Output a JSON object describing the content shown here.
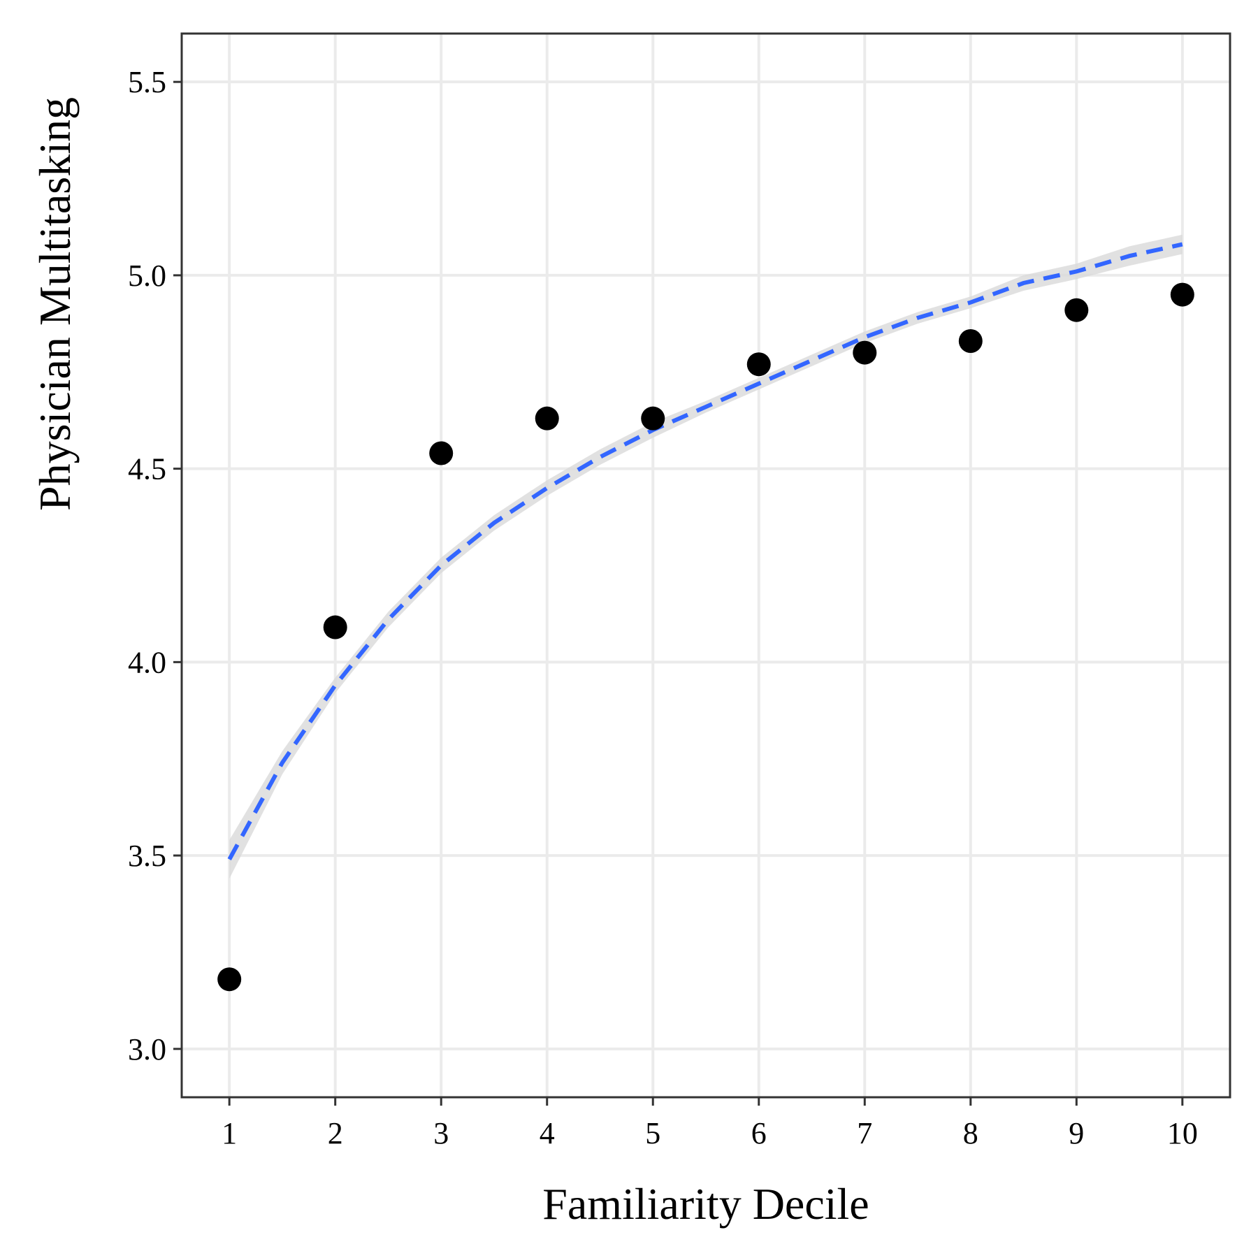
{
  "chart_data": {
    "type": "scatter",
    "title": "",
    "xlabel": "Familiarity Decile",
    "ylabel": "Physician Multitasking",
    "xlim": [
      0.55,
      10.45
    ],
    "ylim": [
      2.875,
      5.625
    ],
    "x_ticks": [
      1,
      2,
      3,
      4,
      5,
      6,
      7,
      8,
      9,
      10
    ],
    "y_ticks": [
      3.0,
      3.5,
      4.0,
      4.5,
      5.0,
      5.5
    ],
    "y_tick_labels": [
      "3.0",
      "3.5",
      "4.0",
      "4.5",
      "5.0",
      "5.5"
    ],
    "grid": true,
    "points": {
      "x": [
        1,
        2,
        3,
        4,
        5,
        6,
        7,
        8,
        9,
        10
      ],
      "y": [
        3.18,
        4.09,
        4.54,
        4.63,
        4.63,
        4.77,
        4.8,
        4.83,
        4.91,
        4.95
      ]
    },
    "fit_line": {
      "style": "dashed",
      "x": [
        1,
        1.5,
        2,
        2.5,
        3,
        3.5,
        4,
        4.5,
        5,
        5.5,
        6,
        6.5,
        7,
        7.5,
        8,
        8.5,
        9,
        9.5,
        10
      ],
      "y": [
        3.49,
        3.74,
        3.94,
        4.11,
        4.25,
        4.36,
        4.45,
        4.53,
        4.6,
        4.66,
        4.72,
        4.78,
        4.84,
        4.89,
        4.93,
        4.98,
        5.01,
        5.05,
        5.08
      ],
      "ci_lower": [
        3.44,
        3.71,
        3.92,
        4.09,
        4.23,
        4.34,
        4.43,
        4.51,
        4.58,
        4.645,
        4.705,
        4.765,
        4.825,
        4.875,
        4.915,
        4.96,
        4.99,
        5.025,
        5.055
      ],
      "ci_upper": [
        3.54,
        3.77,
        3.96,
        4.13,
        4.27,
        4.38,
        4.47,
        4.55,
        4.62,
        4.675,
        4.735,
        4.795,
        4.855,
        4.905,
        4.945,
        5.0,
        5.03,
        5.075,
        5.105
      ]
    },
    "colors": {
      "points": "#000000",
      "fit_line": "#3366FF",
      "ci_band": "#D9D9D9",
      "grid": "#EBEBEB",
      "panel_border": "#333333"
    }
  }
}
